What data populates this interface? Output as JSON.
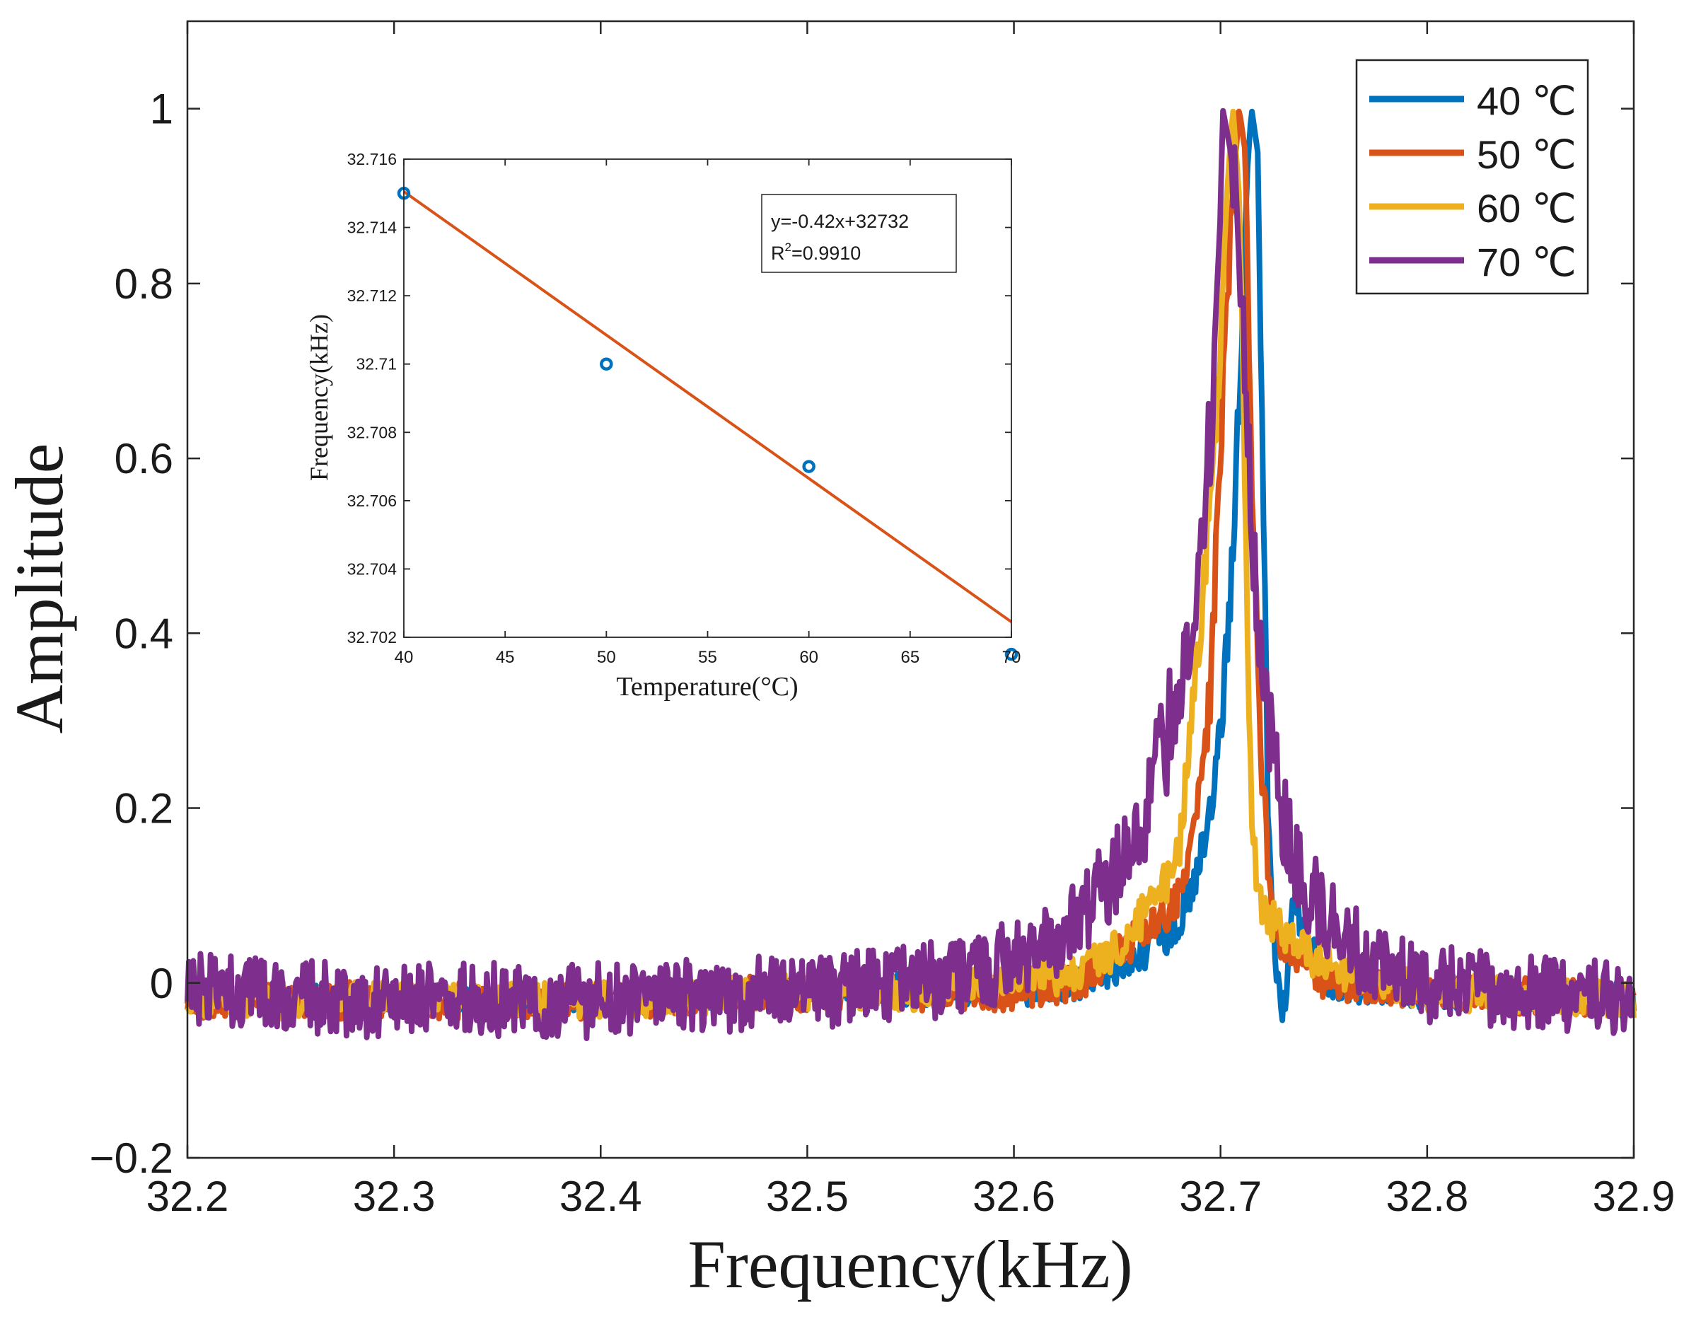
{
  "chart_data": [
    {
      "type": "line",
      "xlabel": "Frequency(kHz)",
      "ylabel": "Amplitude",
      "xlim": [
        32.2,
        32.9
      ],
      "ylim": [
        -0.2,
        1.1
      ],
      "xticks": [
        32.2,
        32.3,
        32.4,
        32.5,
        32.6,
        32.7,
        32.8,
        32.9
      ],
      "xtick_labels": [
        "32.2",
        "32.3",
        "32.4",
        "32.5",
        "32.6",
        "32.7",
        "32.8",
        "32.9"
      ],
      "yticks": [
        -0.2,
        0,
        0.2,
        0.4,
        0.6,
        0.8,
        1
      ],
      "ytick_labels": [
        "−0.2",
        "0",
        "0.2",
        "0.4",
        "0.6",
        "0.8",
        "1"
      ],
      "legend_position": "top-right",
      "grid": false,
      "series": [
        {
          "name": "40 ℃",
          "color": "#0072BD",
          "peak_x": 32.715,
          "peak_y": 1.0,
          "x": [
            32.2,
            32.3,
            32.4,
            32.5,
            32.55,
            32.6,
            32.63,
            32.66,
            32.68,
            32.69,
            32.7,
            32.705,
            32.71,
            32.713,
            32.715,
            32.718,
            32.72,
            32.723,
            32.726,
            32.73,
            32.735,
            32.74,
            32.75,
            32.8,
            32.9
          ],
          "y": [
            -0.01,
            -0.02,
            -0.02,
            -0.01,
            -0.01,
            -0.005,
            0.0,
            0.03,
            0.07,
            0.14,
            0.28,
            0.45,
            0.73,
            0.93,
            1.0,
            0.95,
            0.65,
            0.2,
            0.04,
            -0.045,
            0.09,
            0.06,
            0.0,
            -0.01,
            -0.02
          ]
        },
        {
          "name": "50 ℃",
          "color": "#D95319",
          "peak_x": 32.709,
          "peak_y": 1.0,
          "x": [
            32.2,
            32.3,
            32.4,
            32.5,
            32.55,
            32.6,
            32.63,
            32.66,
            32.68,
            32.69,
            32.695,
            32.7,
            32.705,
            32.709,
            32.712,
            32.715,
            32.72,
            32.725,
            32.73,
            32.74,
            32.75,
            32.8,
            32.9
          ],
          "y": [
            -0.02,
            -0.02,
            -0.02,
            -0.01,
            -0.01,
            -0.01,
            0.0,
            0.05,
            0.1,
            0.22,
            0.33,
            0.62,
            0.87,
            1.0,
            0.95,
            0.6,
            0.25,
            0.06,
            0.05,
            0.03,
            0.0,
            -0.01,
            -0.02
          ]
        },
        {
          "name": "60 ℃",
          "color": "#EDB120",
          "peak_x": 32.706,
          "peak_y": 1.0,
          "x": [
            32.2,
            32.3,
            32.4,
            32.5,
            32.55,
            32.6,
            32.63,
            32.65,
            32.67,
            32.68,
            32.69,
            32.7,
            32.703,
            32.706,
            32.709,
            32.712,
            32.715,
            32.72,
            32.73,
            32.74,
            32.75,
            32.8,
            32.9
          ],
          "y": [
            -0.02,
            -0.02,
            -0.02,
            -0.01,
            -0.01,
            0.0,
            0.01,
            0.04,
            0.1,
            0.15,
            0.4,
            0.72,
            0.9,
            1.0,
            0.9,
            0.55,
            0.18,
            0.08,
            0.06,
            0.04,
            0.02,
            -0.01,
            -0.02
          ]
        },
        {
          "name": "70 ℃",
          "color": "#7E2F8E",
          "peak_x": 32.701,
          "peak_y": 1.0,
          "x": [
            32.2,
            32.3,
            32.4,
            32.5,
            32.55,
            32.58,
            32.6,
            32.62,
            32.64,
            32.66,
            32.67,
            32.68,
            32.69,
            32.695,
            32.7,
            32.701,
            32.705,
            32.71,
            32.715,
            32.72,
            32.73,
            32.74,
            32.75,
            32.76,
            32.77,
            32.8,
            32.85,
            32.9
          ],
          "y": [
            -0.01,
            -0.02,
            -0.02,
            -0.01,
            0.0,
            0.01,
            0.03,
            0.05,
            0.1,
            0.15,
            0.25,
            0.33,
            0.48,
            0.63,
            0.88,
            1.0,
            0.95,
            0.78,
            0.55,
            0.33,
            0.2,
            0.12,
            0.08,
            0.05,
            0.03,
            0.0,
            -0.01,
            -0.02
          ]
        }
      ]
    },
    {
      "type": "scatter",
      "xlabel": "Temperature(°C)",
      "ylabel": "Frequency(kHz)",
      "xlim": [
        40,
        70
      ],
      "ylim": [
        32.702,
        32.716
      ],
      "xticks": [
        40,
        45,
        50,
        55,
        60,
        65,
        70
      ],
      "xtick_labels": [
        "40",
        "45",
        "50",
        "55",
        "60",
        "65",
        "70"
      ],
      "yticks": [
        32.702,
        32.704,
        32.706,
        32.708,
        32.71,
        32.712,
        32.714,
        32.716
      ],
      "ytick_labels": [
        "32.702",
        "32.704",
        "32.706",
        "32.708",
        "32.71",
        "32.712",
        "32.714",
        "32.716"
      ],
      "points": {
        "x": [
          40,
          50,
          60,
          70
        ],
        "y": [
          32.715,
          32.71,
          32.707,
          32.7015
        ],
        "color": "#0072BD"
      },
      "fit": {
        "slope_per_degC_kHz": -0.00042,
        "intercept_kHz": 32.73185,
        "color": "#D95319"
      },
      "annotation": {
        "equation": "y=-0.42x+32732",
        "r_prefix": "R",
        "r_sup": "2",
        "r_value": "=0.9910"
      }
    }
  ]
}
